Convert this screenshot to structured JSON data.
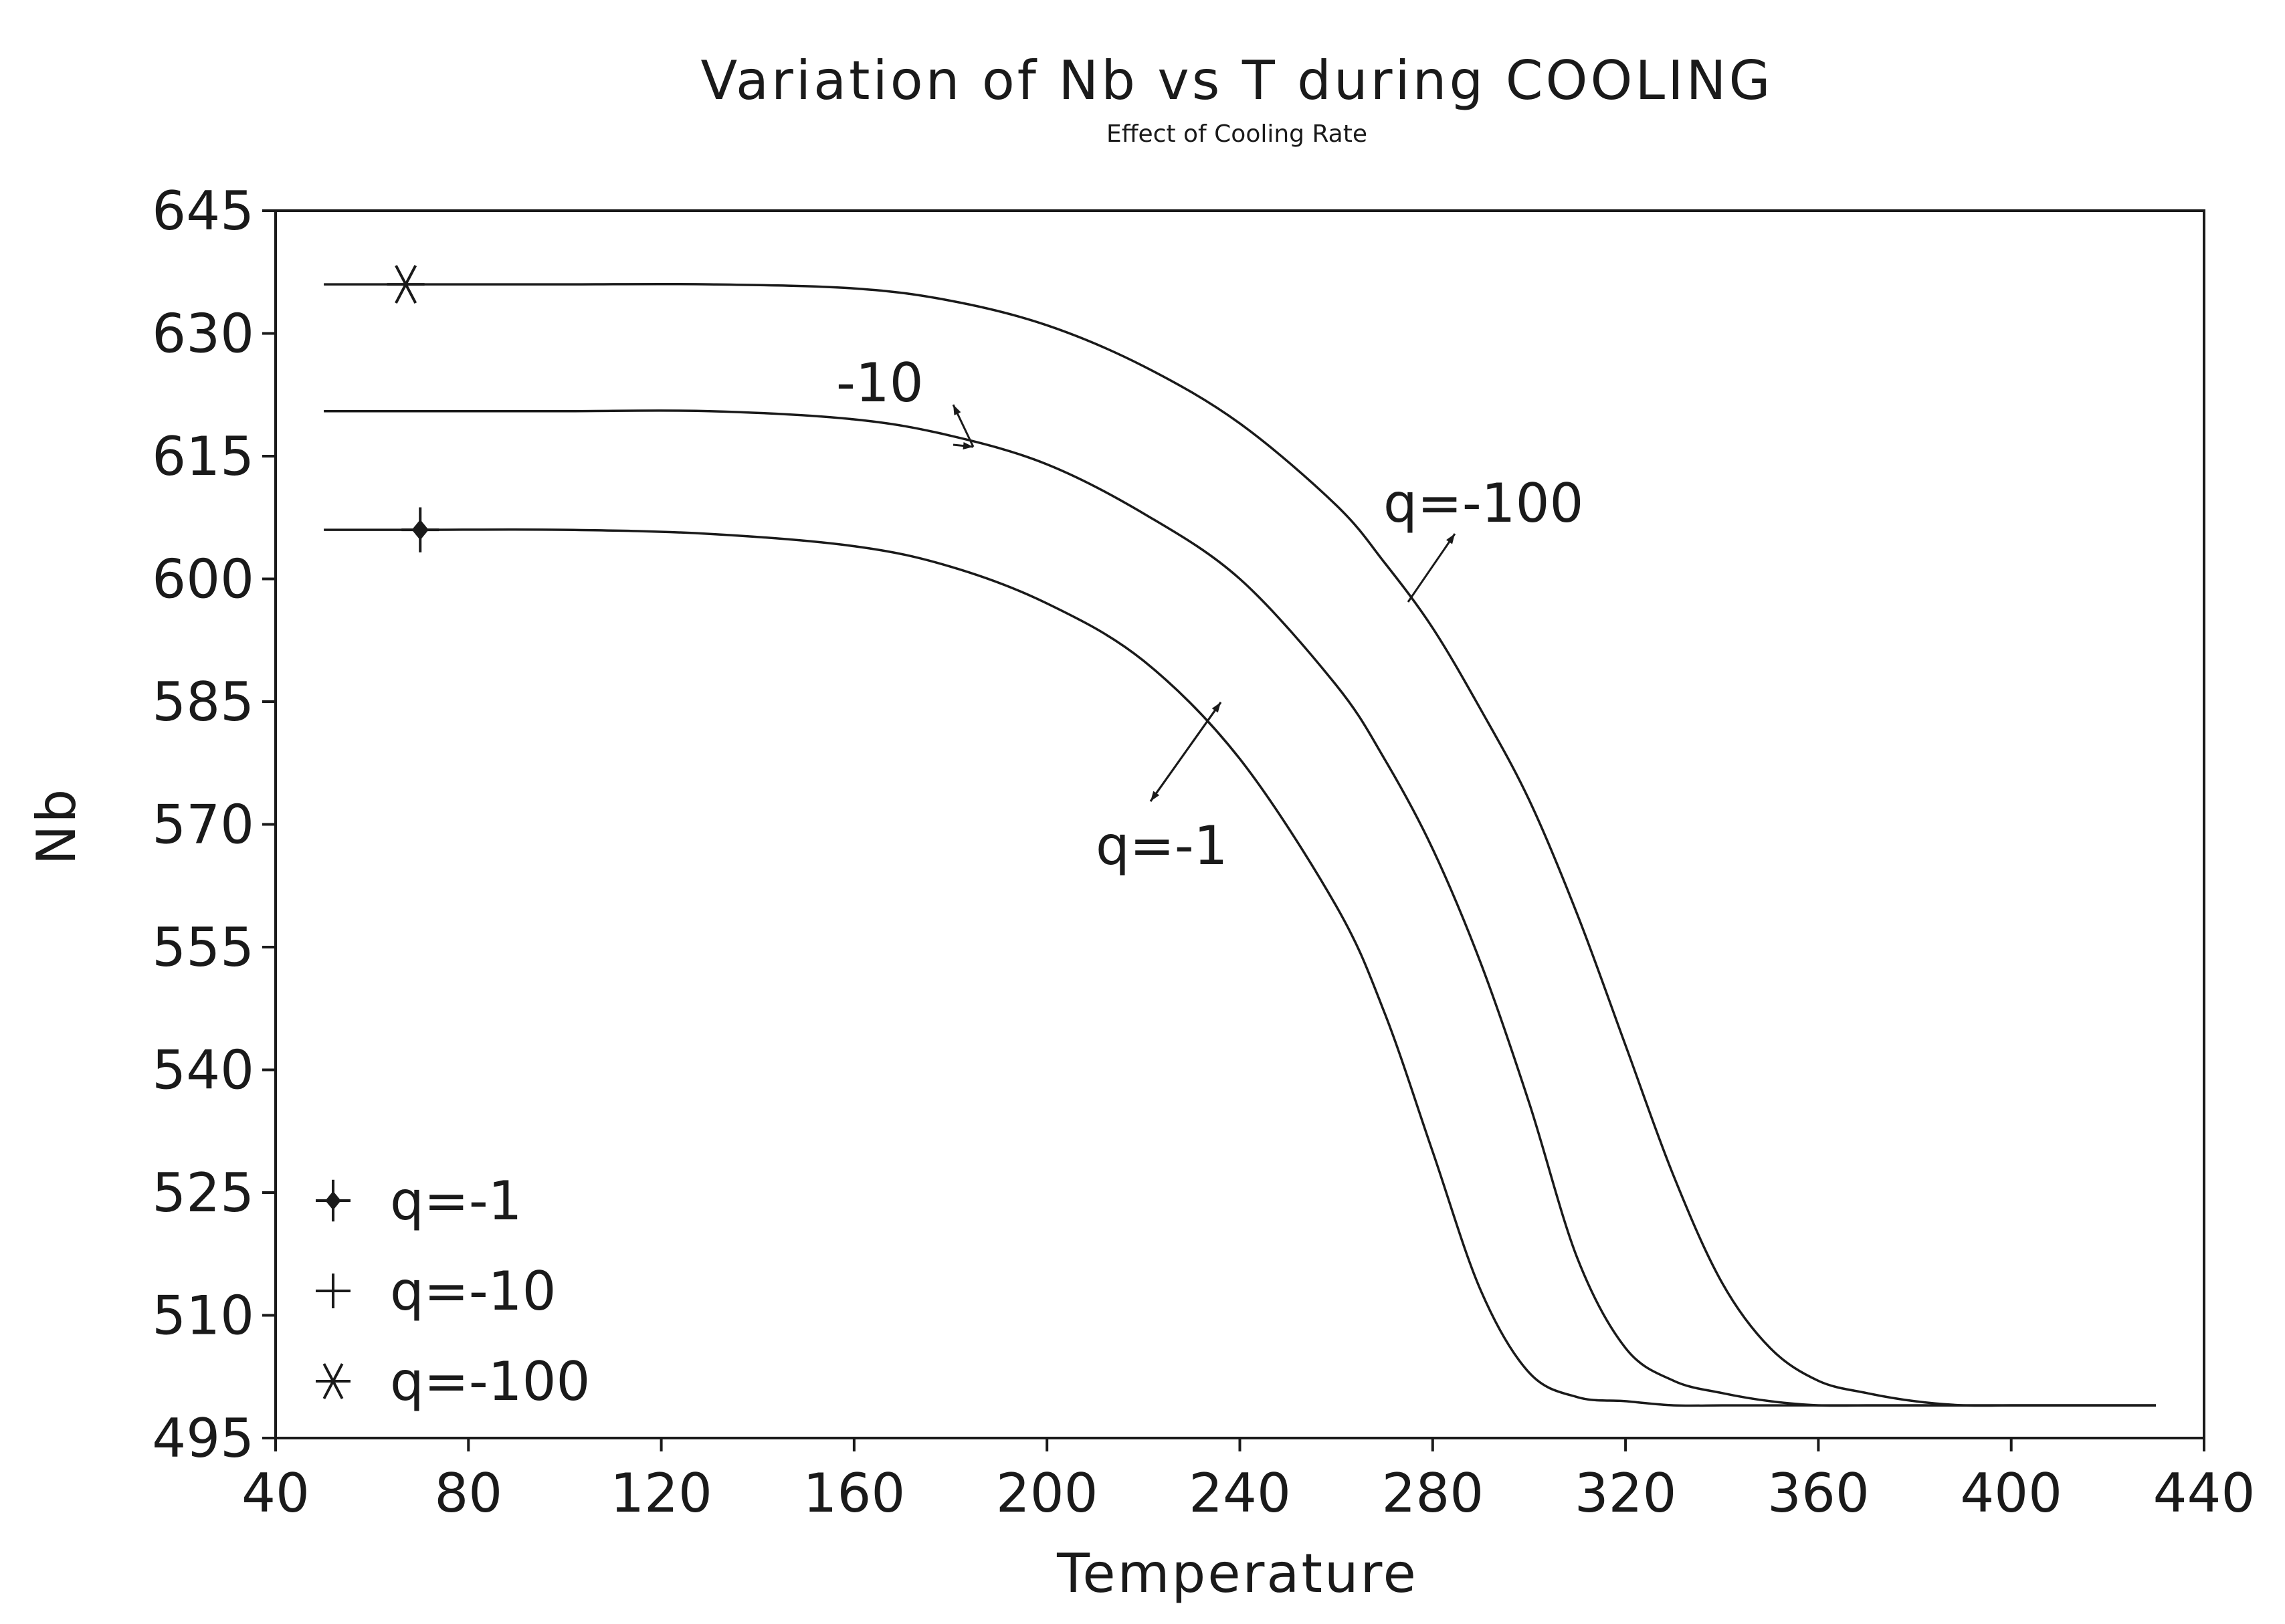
{
  "chart_data": {
    "type": "line",
    "title": "Variation of Nb vs T during COOLING",
    "subtitle": "Effect of Cooling Rate",
    "xlabel": "Temperature",
    "ylabel": "Nb",
    "xlim": [
      40,
      440
    ],
    "ylim": [
      495,
      645
    ],
    "xticks": [
      40,
      80,
      120,
      160,
      200,
      240,
      280,
      320,
      360,
      400,
      440
    ],
    "yticks": [
      495,
      510,
      525,
      540,
      555,
      570,
      585,
      600,
      615,
      630,
      645
    ],
    "legend_position": "bottom-left",
    "x": [
      50,
      70,
      100,
      130,
      160,
      180,
      200,
      220,
      240,
      260,
      270,
      280,
      290,
      300,
      310,
      320,
      330,
      340,
      350,
      360,
      370,
      380,
      390,
      400,
      410,
      420,
      430
    ],
    "series": [
      {
        "name": "q=-1",
        "marker": "diamond-plus",
        "marker_x": 70,
        "values": [
          606,
          606,
          606,
          605.5,
          604,
          601.5,
          597,
          590,
          578,
          560,
          547,
          530,
          513,
          503,
          500,
          499.5,
          499,
          499,
          499,
          499,
          499,
          499,
          499,
          499,
          499,
          499,
          499
        ]
      },
      {
        "name": "q=-10",
        "marker": "plus",
        "marker_x": null,
        "values": [
          620.5,
          620.5,
          620.5,
          620.5,
          619.5,
          617.5,
          614,
          608,
          600,
          587,
          578,
          567,
          553,
          536,
          517,
          506,
          502,
          500.5,
          499.5,
          499,
          499,
          499,
          499,
          499,
          499,
          499,
          499
        ]
      },
      {
        "name": "q=-100",
        "marker": "asterisk",
        "marker_x": 67,
        "values": [
          636,
          636,
          636,
          636,
          635.5,
          634,
          631,
          626,
          619,
          609,
          602,
          594,
          584,
          573,
          559,
          543,
          527,
          514,
          506,
          502,
          500.5,
          499.5,
          499,
          499,
          499,
          499,
          499
        ]
      }
    ],
    "annotations": [
      {
        "text": "-10",
        "series": "q=-10"
      },
      {
        "text": "q=-100",
        "series": "q=-100"
      },
      {
        "text": "q=-1",
        "series": "q=-1"
      }
    ]
  }
}
